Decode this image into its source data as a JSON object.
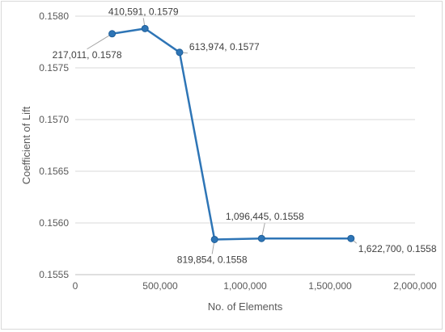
{
  "chart_data": {
    "type": "line",
    "title": "",
    "xlabel": "No. of Elements",
    "ylabel": "Coefficient of Lift",
    "xlim": [
      0,
      2000000
    ],
    "ylim": [
      0.1555,
      0.158
    ],
    "grid": "horizontal",
    "series": [
      {
        "color": "#2E75B6",
        "points": [
          {
            "x": 217011,
            "y": 0.15783,
            "label": "217,011, 0.1578"
          },
          {
            "x": 410591,
            "y": 0.15788,
            "label": "410,591, 0.1579"
          },
          {
            "x": 613974,
            "y": 0.15765,
            "label": "613,974, 0.1577"
          },
          {
            "x": 819854,
            "y": 0.15584,
            "label": "819,854, 0.1558"
          },
          {
            "x": 1096445,
            "y": 0.15585,
            "label": "1,096,445, 0.1558"
          },
          {
            "x": 1622700,
            "y": 0.15585,
            "label": "1,622,700, 0.1558"
          }
        ]
      }
    ],
    "x_ticks": [
      {
        "value": 0,
        "label": "0"
      },
      {
        "value": 500000,
        "label": "500,000"
      },
      {
        "value": 1000000,
        "label": "1,000,000"
      },
      {
        "value": 1500000,
        "label": "1,500,000"
      },
      {
        "value": 2000000,
        "label": "2,000,000"
      }
    ],
    "y_ticks": [
      {
        "value": 0.1555,
        "label": "0.1555"
      },
      {
        "value": 0.156,
        "label": "0.1560"
      },
      {
        "value": 0.1565,
        "label": "0.1565"
      },
      {
        "value": 0.157,
        "label": "0.1570"
      },
      {
        "value": 0.1575,
        "label": "0.1575"
      },
      {
        "value": 0.158,
        "label": "0.1580"
      }
    ]
  }
}
